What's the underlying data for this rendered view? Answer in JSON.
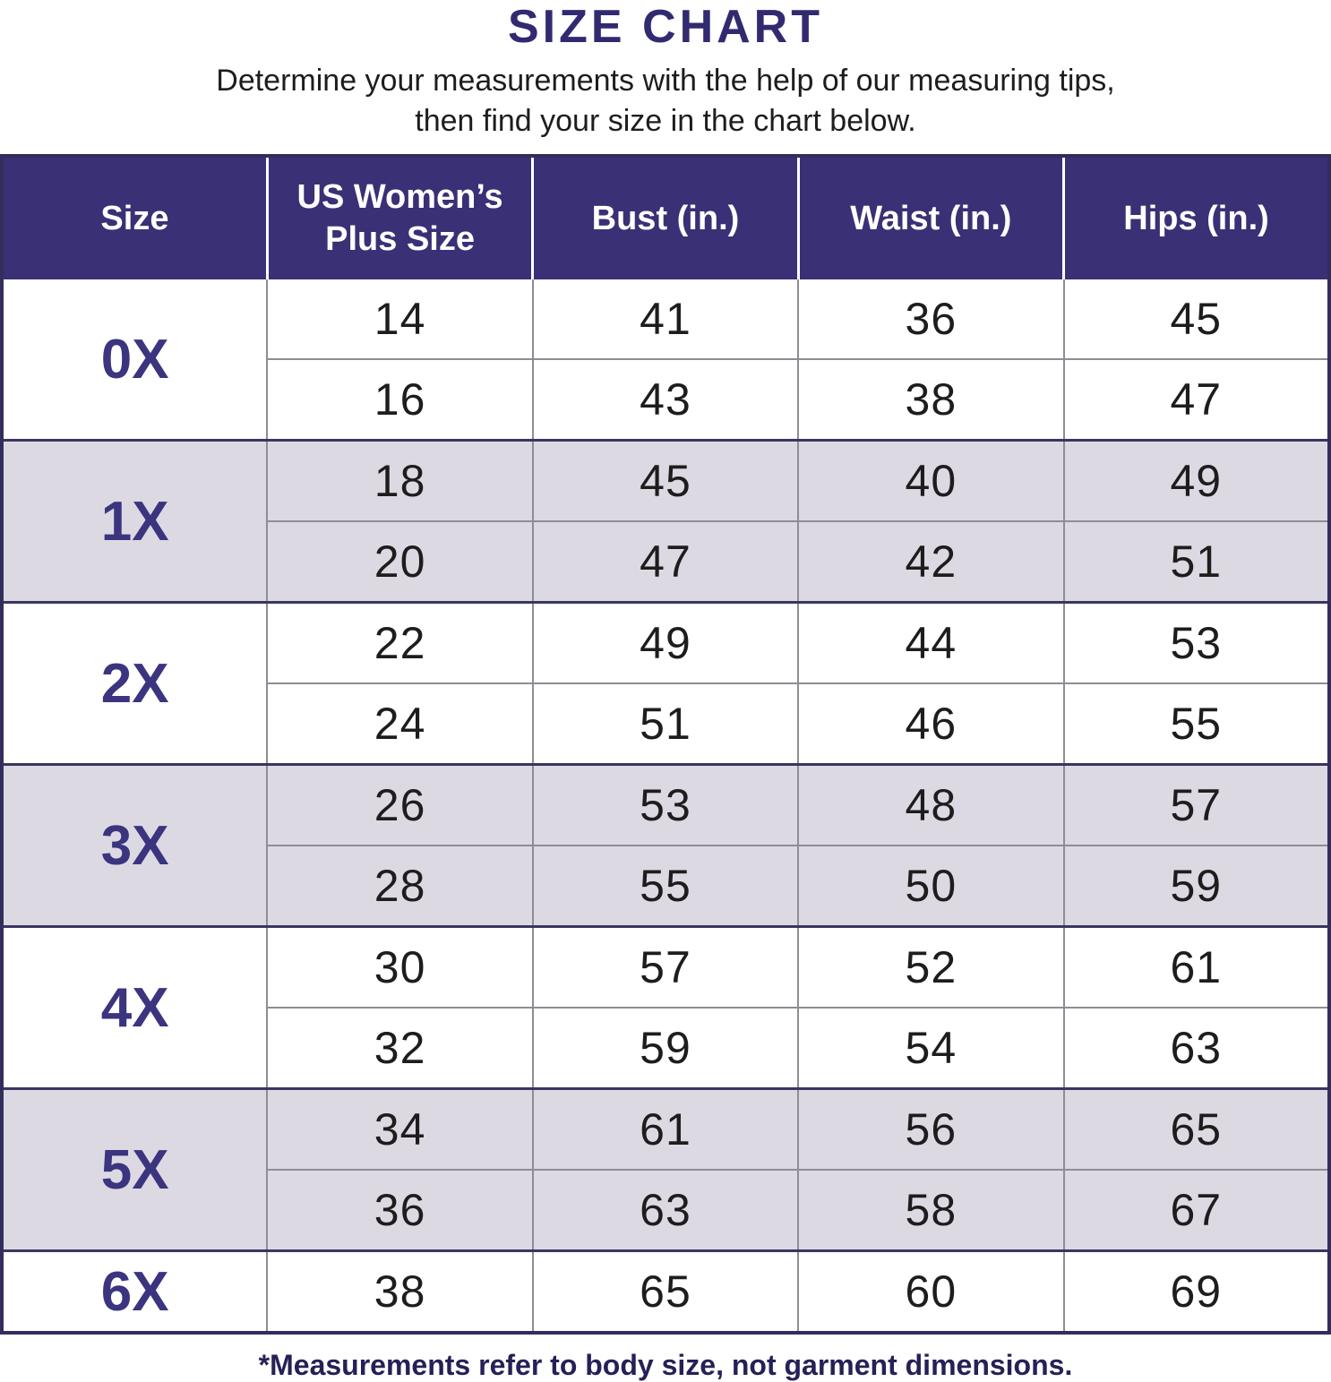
{
  "page": {
    "title": "SIZE CHART",
    "subtitle_line1": "Determine your measurements with the help of our measuring tips,",
    "subtitle_line2": "then find your size in the chart below.",
    "footnote": "*Measurements refer to body size, not garment dimensions."
  },
  "colors": {
    "header_bg": "#3A3076",
    "header_text": "#FFFFFF",
    "title_color": "#312A70",
    "label_purple": "#3B347E",
    "row_shaded": "#DDD9E3",
    "row_plain": "#FFFFFF",
    "border_dark": "#3A3660",
    "border_outer": "#322E5C",
    "border_light": "#8E8C94",
    "body_text": "#1D1D1D",
    "footnote_color": "#252157"
  },
  "chart_data": {
    "type": "table",
    "title": "SIZE CHART",
    "columns": [
      "Size",
      "US Women’s Plus Size",
      "Bust (in.)",
      "Waist (in.)",
      "Hips (in.)"
    ],
    "column_keys": [
      "size",
      "us_womens_plus_size",
      "bust_in",
      "waist_in",
      "hips_in"
    ],
    "groups": [
      {
        "size": "0X",
        "shaded": false,
        "rows": [
          [
            14,
            41,
            36,
            45
          ],
          [
            16,
            43,
            38,
            47
          ]
        ]
      },
      {
        "size": "1X",
        "shaded": true,
        "rows": [
          [
            18,
            45,
            40,
            49
          ],
          [
            20,
            47,
            42,
            51
          ]
        ]
      },
      {
        "size": "2X",
        "shaded": false,
        "rows": [
          [
            22,
            49,
            44,
            53
          ],
          [
            24,
            51,
            46,
            55
          ]
        ]
      },
      {
        "size": "3X",
        "shaded": true,
        "rows": [
          [
            26,
            53,
            48,
            57
          ],
          [
            28,
            55,
            50,
            59
          ]
        ]
      },
      {
        "size": "4X",
        "shaded": false,
        "rows": [
          [
            30,
            57,
            52,
            61
          ],
          [
            32,
            59,
            54,
            63
          ]
        ]
      },
      {
        "size": "5X",
        "shaded": true,
        "rows": [
          [
            34,
            61,
            56,
            65
          ],
          [
            36,
            63,
            58,
            67
          ]
        ]
      },
      {
        "size": "6X",
        "shaded": false,
        "rows": [
          [
            38,
            65,
            60,
            69
          ]
        ]
      }
    ]
  }
}
